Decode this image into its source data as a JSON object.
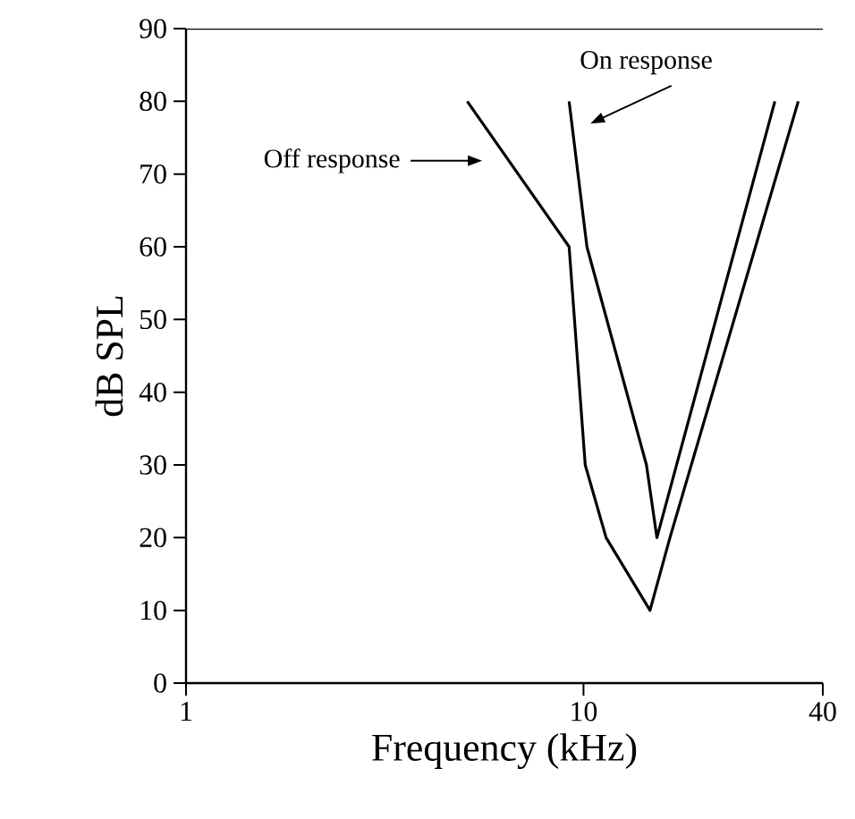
{
  "chart_data": {
    "type": "line",
    "xlabel": "Frequency (kHz)",
    "ylabel": "dB SPL",
    "log": "x",
    "xlim": [
      1,
      40
    ],
    "xticks": [
      1,
      10,
      40
    ],
    "ylim": [
      0,
      90
    ],
    "yticks": [
      0,
      10,
      20,
      30,
      40,
      50,
      60,
      70,
      80,
      90
    ],
    "grid": false,
    "marker": "none",
    "line_style": "solid",
    "series": [
      {
        "color": "#000000",
        "x": [
          5.1,
          9.2,
          10.1,
          11.4,
          14.7,
          16.5,
          34.7
        ],
        "values": [
          80,
          60,
          30,
          20,
          10,
          20,
          80
        ]
      },
      {
        "color": "#000000",
        "x": [
          9.2,
          10.2,
          14.4,
          15.3,
          30.3
        ],
        "values": [
          80,
          60,
          30,
          20,
          80
        ]
      }
    ],
    "annotations": [
      "Off response",
      "On response"
    ]
  }
}
